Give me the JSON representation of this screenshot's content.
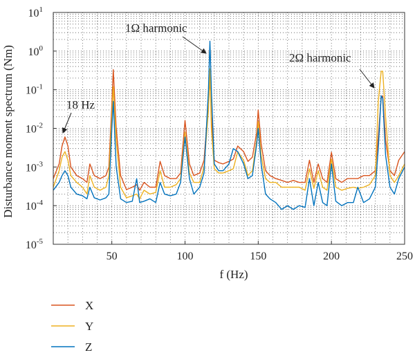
{
  "chart_data": {
    "type": "line",
    "xlabel": "f (Hz)",
    "ylabel": "Disturbance moment spectrum (Nm)",
    "xlim": [
      10,
      250
    ],
    "ylim_log10": [
      -5,
      1
    ],
    "yscale": "log",
    "x_ticks": [
      "50",
      "100",
      "150",
      "200",
      "250"
    ],
    "y_ticks": [
      {
        "base": "10",
        "exp": "1"
      },
      {
        "base": "10",
        "exp": "0"
      },
      {
        "base": "10",
        "exp": "-1"
      },
      {
        "base": "10",
        "exp": "-2"
      },
      {
        "base": "10",
        "exp": "-3"
      },
      {
        "base": "10",
        "exp": "-4"
      },
      {
        "base": "10",
        "exp": "-5"
      }
    ],
    "grid": true,
    "legend_position": "below",
    "annotations": [
      {
        "text": "18 Hz",
        "x": 18,
        "y": 0.0055
      },
      {
        "text": "1Ω harmonic",
        "x": 117,
        "y": 1.8
      },
      {
        "text": "2Ω harmonic",
        "x": 234,
        "y": 0.32
      }
    ],
    "x": [
      10,
      14,
      16,
      18,
      20,
      22,
      26,
      30,
      33,
      35,
      38,
      42,
      46,
      48,
      50,
      51,
      53,
      56,
      60,
      64,
      67,
      69,
      72,
      76,
      80,
      83,
      86,
      90,
      94,
      97,
      100,
      103,
      106,
      110,
      113,
      116,
      117,
      118,
      120,
      123,
      126,
      130,
      133,
      136,
      140,
      143,
      146,
      149,
      150,
      152,
      155,
      158,
      162,
      166,
      170,
      174,
      178,
      182,
      185,
      188,
      191,
      194,
      197,
      200,
      203,
      207,
      211,
      215,
      218,
      222,
      226,
      230,
      232,
      234,
      235,
      237,
      240,
      243,
      246,
      250
    ],
    "series": [
      {
        "name": "X",
        "color": "#d9541e",
        "values": [
          0.0005,
          0.0012,
          0.0035,
          0.006,
          0.0035,
          0.001,
          0.0006,
          0.0005,
          0.0004,
          0.0012,
          0.0006,
          0.0005,
          0.0006,
          0.001,
          0.04,
          0.33,
          0.01,
          0.0006,
          0.00026,
          0.0003,
          0.00035,
          0.00025,
          0.0004,
          0.0003,
          0.0003,
          0.0014,
          0.0006,
          0.0005,
          0.0005,
          0.0007,
          0.016,
          0.0012,
          0.0006,
          0.0007,
          0.0015,
          0.05,
          0.2,
          0.02,
          0.0015,
          0.0013,
          0.0012,
          0.0014,
          0.0016,
          0.0035,
          0.0025,
          0.0014,
          0.0018,
          0.008,
          0.03,
          0.004,
          0.0008,
          0.0006,
          0.0005,
          0.00045,
          0.0004,
          0.00045,
          0.0004,
          0.0004,
          0.0015,
          0.0004,
          0.0012,
          0.0005,
          0.0004,
          0.0024,
          0.0005,
          0.0004,
          0.0005,
          0.0005,
          0.0005,
          0.0006,
          0.0006,
          0.0008,
          0.006,
          0.06,
          0.07,
          0.005,
          0.0008,
          0.0006,
          0.0015,
          0.0025
        ]
      },
      {
        "name": "Y",
        "color": "#edb120",
        "values": [
          0.0003,
          0.0008,
          0.0018,
          0.0025,
          0.0015,
          0.0006,
          0.0004,
          0.0003,
          0.0002,
          0.0006,
          0.0003,
          0.00025,
          0.0003,
          0.0006,
          0.02,
          0.12,
          0.005,
          0.0003,
          0.00016,
          0.00018,
          0.0002,
          0.00015,
          0.00025,
          0.0002,
          0.00022,
          0.0008,
          0.0003,
          0.0003,
          0.00035,
          0.0005,
          0.008,
          0.0007,
          0.0004,
          0.0004,
          0.001,
          0.03,
          0.35,
          0.01,
          0.0009,
          0.0007,
          0.0007,
          0.0008,
          0.0009,
          0.0025,
          0.0015,
          0.0006,
          0.0008,
          0.005,
          0.015,
          0.002,
          0.0005,
          0.0004,
          0.0004,
          0.0003,
          0.0003,
          0.0003,
          0.0003,
          0.00025,
          0.0009,
          0.00028,
          0.0008,
          0.0003,
          0.00025,
          0.0016,
          0.0003,
          0.00025,
          0.00028,
          0.0003,
          0.00028,
          0.0003,
          0.00035,
          0.0006,
          0.05,
          0.3,
          0.3,
          0.02,
          0.0006,
          0.0004,
          0.0006,
          0.0012
        ]
      },
      {
        "name": "Z",
        "color": "#0072bd",
        "values": [
          0.00025,
          0.0004,
          0.0006,
          0.0008,
          0.0006,
          0.0003,
          0.0002,
          0.00018,
          0.00015,
          0.0003,
          0.00016,
          0.00014,
          0.00016,
          0.0002,
          0.01,
          0.05,
          0.001,
          0.00015,
          0.00012,
          0.00013,
          0.0005,
          0.00012,
          0.00013,
          0.00015,
          0.00012,
          0.0004,
          0.0002,
          0.00018,
          0.0002,
          0.0004,
          0.006,
          0.0005,
          0.0002,
          0.0003,
          0.0007,
          0.1,
          1.8,
          0.1,
          0.0012,
          0.0008,
          0.0008,
          0.0012,
          0.003,
          0.0025,
          0.0012,
          0.0005,
          0.0006,
          0.004,
          0.01,
          0.0012,
          0.0002,
          0.00015,
          0.00012,
          8e-05,
          0.0001,
          8e-05,
          0.0001,
          9e-05,
          0.0005,
          0.0001,
          0.0004,
          0.00012,
          0.0001,
          0.0012,
          0.00013,
          0.0001,
          0.00012,
          0.00012,
          0.0003,
          0.00012,
          0.00015,
          0.0003,
          0.003,
          0.07,
          0.06,
          0.002,
          0.0003,
          0.0002,
          0.0005,
          0.001
        ]
      }
    ]
  }
}
